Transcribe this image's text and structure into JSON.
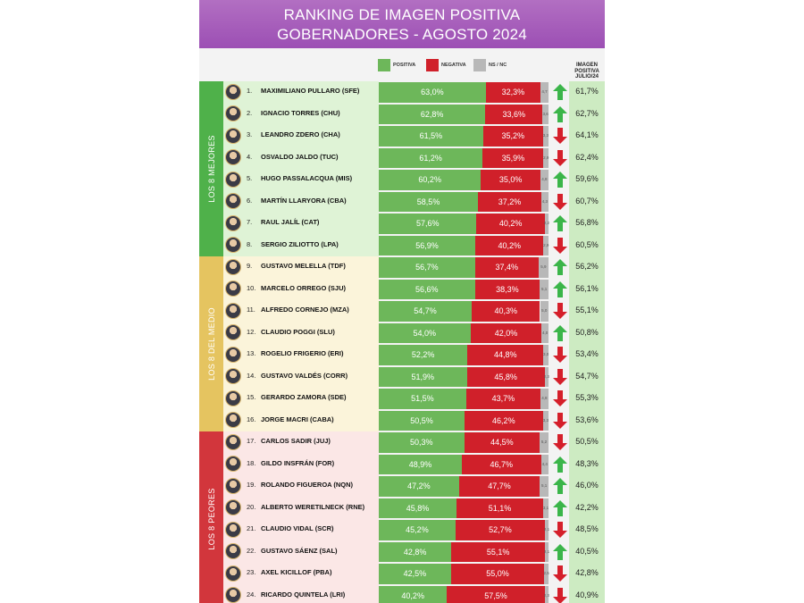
{
  "title_line1": "RANKING DE IMAGEN POSITIVA",
  "title_line2": "GOBERNADORES - AGOSTO 2024",
  "legend": {
    "positive": "POSITIVA",
    "negative": "NEGATIVA",
    "ns": "NS / NC"
  },
  "julio_header": [
    "IMAGEN",
    "POSITIVA",
    "JULIO/24"
  ],
  "groups": [
    {
      "label": "LOS 8 MEJORES",
      "color": "#4fb14a",
      "bg": "#dff3d6"
    },
    {
      "label": "LOS 8 DEL MEDIO",
      "color": "#e5c460",
      "bg": "#fbf4da"
    },
    {
      "label": "LOS 8 PEORES",
      "color": "#d2363c",
      "bg": "#fbe7e6"
    }
  ],
  "colors": {
    "positive": "#6db75a",
    "negative": "#d0202a",
    "ns": "#b8b8b8",
    "up_arrow": "#3bb54a",
    "down_arrow": "#d51f2b"
  },
  "chart_data": {
    "type": "bar",
    "stacked": true,
    "orientation": "horizontal",
    "title": "RANKING DE IMAGEN POSITIVA GOBERNADORES - AGOSTO 2024",
    "categories": [
      "MAXIMILIANO PULLARO (SFE)",
      "IGNACIO TORRES (CHU)",
      "LEANDRO ZDERO (CHA)",
      "OSVALDO JALDO (TUC)",
      "HUGO PASSALACQUA (MIS)",
      "MARTÍN LLARYORA (CBA)",
      "RAUL JALÍL (CAT)",
      "SERGIO ZILIOTTO (LPA)",
      "GUSTAVO MELELLA (TDF)",
      "MARCELO ORREGO (SJU)",
      "ALFREDO CORNEJO (MZA)",
      "CLAUDIO POGGI (SLU)",
      "ROGELIO FRIGERIO (ERI)",
      "GUSTAVO VALDÉS (CORR)",
      "GERARDO ZAMORA (SDE)",
      "JORGE MACRI (CABA)",
      "CARLOS SADIR (JUJ)",
      "GILDO INSFRÁN (FOR)",
      "ROLANDO FIGUEROA (NQN)",
      "ALBERTO WERETILNECK (RNE)",
      "CLAUDIO VIDAL (SCR)",
      "GUSTAVO SÁENZ (SAL)",
      "AXEL KICILLOF (PBA)",
      "RICARDO QUINTELA (LRI)"
    ],
    "rank_labels": [
      "1.",
      "2.",
      "3.",
      "4.",
      "5.",
      "6.",
      "7.",
      "8.",
      "9.",
      "10.",
      "11.",
      "12.",
      "13.",
      "14.",
      "15.",
      "16.",
      "17.",
      "18.",
      "19.",
      "20.",
      "21.",
      "22.",
      "23.",
      "24."
    ],
    "series": [
      {
        "name": "POSITIVA",
        "values": [
          63.0,
          62.8,
          61.5,
          61.2,
          60.2,
          58.5,
          57.6,
          56.9,
          56.7,
          56.6,
          54.7,
          54.0,
          52.2,
          51.9,
          51.5,
          50.5,
          50.3,
          48.9,
          47.2,
          45.8,
          45.2,
          42.8,
          42.5,
          40.2
        ],
        "labels": [
          "63,0%",
          "62,8%",
          "61,5%",
          "61,2%",
          "60,2%",
          "58,5%",
          "57,6%",
          "56,9%",
          "56,7%",
          "56,6%",
          "54,7%",
          "54,0%",
          "52,2%",
          "51,9%",
          "51,5%",
          "50,5%",
          "50,3%",
          "48,9%",
          "47,2%",
          "45,8%",
          "45,2%",
          "42,8%",
          "42,5%",
          "40,2%"
        ]
      },
      {
        "name": "NEGATIVA",
        "values": [
          32.3,
          33.6,
          35.2,
          35.9,
          35.0,
          37.2,
          40.2,
          40.2,
          37.4,
          38.3,
          40.3,
          42.0,
          44.8,
          45.8,
          43.7,
          46.2,
          44.5,
          46.7,
          47.7,
          51.1,
          52.7,
          55.1,
          55.0,
          57.5
        ],
        "labels": [
          "32,3%",
          "33,6%",
          "35,2%",
          "35,9%",
          "35,0%",
          "37,2%",
          "40,2%",
          "40,2%",
          "37,4%",
          "38,3%",
          "40,3%",
          "42,0%",
          "44,8%",
          "45,8%",
          "43,7%",
          "46,2%",
          "44,5%",
          "46,7%",
          "47,7%",
          "51,1%",
          "52,7%",
          "55,1%",
          "55,0%",
          "57,5%"
        ]
      },
      {
        "name": "NS / NC",
        "values": [
          4.7,
          3.6,
          3.3,
          2.9,
          4.8,
          4.3,
          2.2,
          2.9,
          5.9,
          5.1,
          5.0,
          4.0,
          3.0,
          2.3,
          4.8,
          3.3,
          5.2,
          4.4,
          5.1,
          3.1,
          2.1,
          2.1,
          2.5,
          2.3
        ],
        "labels": [
          "4,7",
          "3,6",
          "3,3",
          "2,9",
          "4,8",
          "4,3",
          "2,2",
          "2,9",
          "5,9",
          "5,1",
          "5,0",
          "4,0",
          "3,0",
          "2,3",
          "4,8",
          "3,3",
          "5,2",
          "4,4",
          "5,1",
          "3,1",
          "2,1",
          "2,1",
          "2,5",
          "2,3"
        ]
      }
    ],
    "trend": [
      "up",
      "up",
      "down",
      "down",
      "up",
      "down",
      "up",
      "down",
      "up",
      "up",
      "down",
      "up",
      "down",
      "down",
      "down",
      "down",
      "down",
      "up",
      "up",
      "up",
      "down",
      "up",
      "down",
      "down"
    ],
    "julio": [
      "61,7%",
      "62,7%",
      "64,1%",
      "62,4%",
      "59,6%",
      "60,7%",
      "56,8%",
      "60,5%",
      "56,2%",
      "56,1%",
      "55,1%",
      "50,8%",
      "53,4%",
      "54,7%",
      "55,3%",
      "53,6%",
      "50,5%",
      "48,3%",
      "46,0%",
      "42,2%",
      "48,5%",
      "40,5%",
      "42,8%",
      "40,9%"
    ],
    "xlim": [
      0,
      100
    ]
  }
}
